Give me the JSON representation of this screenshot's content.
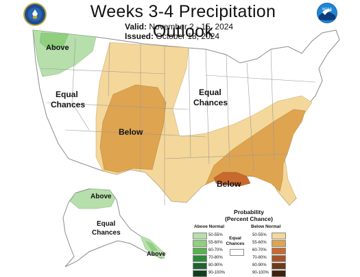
{
  "title": "Weeks 3-4 Precipitation Outlook",
  "valid_label": "Valid:",
  "valid_value": "November 2 - 15, 2024",
  "issued_label": "Issued:",
  "issued_value": "October 18, 2024",
  "logo_right_text": "NOAA",
  "map_labels": {
    "above_nw": "Above",
    "equal_w_1": "Equal",
    "equal_w_2": "Chances",
    "equal_c_1": "Equal",
    "equal_c_2": "Chances",
    "below_sw": "Below",
    "below_se": "Below",
    "above_ak": "Above",
    "equal_ak_1": "Equal",
    "equal_ak_2": "Chances",
    "above_ak_se": "Above"
  },
  "legend": {
    "title_1": "Probability",
    "title_2": "(Percent Chance)",
    "above_header": "Above Normal",
    "below_header": "Below Normal",
    "equal_1": "Equal",
    "equal_2": "Chances",
    "above_items": [
      {
        "label": "50-55%",
        "color": "#b6dfab"
      },
      {
        "label": "55-60%",
        "color": "#8fcf7e"
      },
      {
        "label": "60-70%",
        "color": "#55b44b"
      },
      {
        "label": "70-80%",
        "color": "#2d8a3a"
      },
      {
        "label": "80-90%",
        "color": "#1f6330"
      },
      {
        "label": "90-100%",
        "color": "#123d1d"
      }
    ],
    "below_items": [
      {
        "label": "50-55%",
        "color": "#f4d79a"
      },
      {
        "label": "55-60%",
        "color": "#dfa450"
      },
      {
        "label": "60-70%",
        "color": "#c86a2e"
      },
      {
        "label": "70-80%",
        "color": "#a5542a"
      },
      {
        "label": "80-90%",
        "color": "#6e3a1c"
      },
      {
        "label": "90-100%",
        "color": "#3f210f"
      }
    ]
  },
  "colors": {
    "above_light": "#b6dfab",
    "above_mid": "#8fcf7e",
    "below_light": "#f4d79a",
    "below_mid": "#dfa450",
    "below_dark": "#c86a2e",
    "border": "#8a8a8a"
  }
}
